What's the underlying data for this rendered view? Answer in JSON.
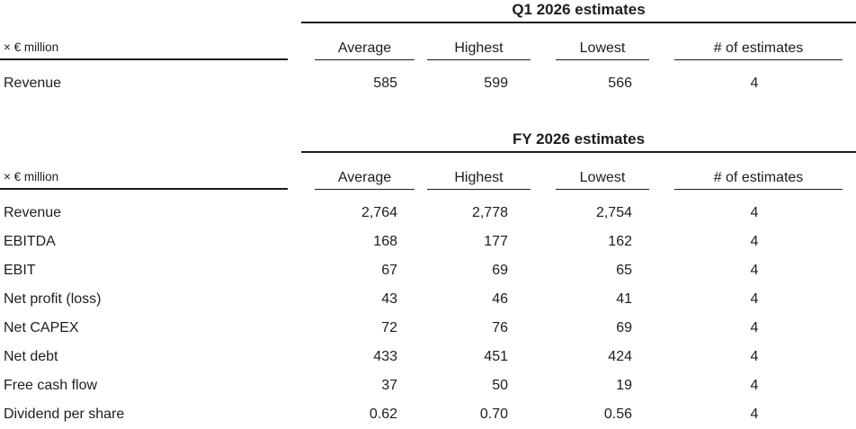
{
  "page": {
    "background": "#ffffff",
    "text_color": "#1d1d1b",
    "line_color": "#1d1d1b"
  },
  "tables": [
    {
      "title": "Q1 2026 estimates",
      "unit_label": "× € million",
      "columns": [
        "Average",
        "Highest",
        "Lowest",
        "# of estimates"
      ],
      "rows": [
        {
          "label": "Revenue",
          "average": "585",
          "highest": "599",
          "lowest": "566",
          "estimates": "4"
        }
      ]
    },
    {
      "title": "FY 2026 estimates",
      "unit_label": "× € million",
      "columns": [
        "Average",
        "Highest",
        "Lowest",
        "# of estimates"
      ],
      "rows": [
        {
          "label": "Revenue",
          "average": "2,764",
          "highest": "2,778",
          "lowest": "2,754",
          "estimates": "4"
        },
        {
          "label": "EBITDA",
          "average": "168",
          "highest": "177",
          "lowest": "162",
          "estimates": "4"
        },
        {
          "label": "EBIT",
          "average": "67",
          "highest": "69",
          "lowest": "65",
          "estimates": "4"
        },
        {
          "label": "Net profit (loss)",
          "average": "43",
          "highest": "46",
          "lowest": "41",
          "estimates": "4"
        },
        {
          "label": "Net CAPEX",
          "average": "72",
          "highest": "76",
          "lowest": "69",
          "estimates": "4"
        },
        {
          "label": "Net debt",
          "average": "433",
          "highest": "451",
          "lowest": "424",
          "estimates": "4"
        },
        {
          "label": "Free cash flow",
          "average": "37",
          "highest": "50",
          "lowest": "19",
          "estimates": "4"
        },
        {
          "label": "Dividend per share",
          "average": "0.62",
          "highest": "0.70",
          "lowest": "0.56",
          "estimates": "4"
        }
      ]
    }
  ]
}
